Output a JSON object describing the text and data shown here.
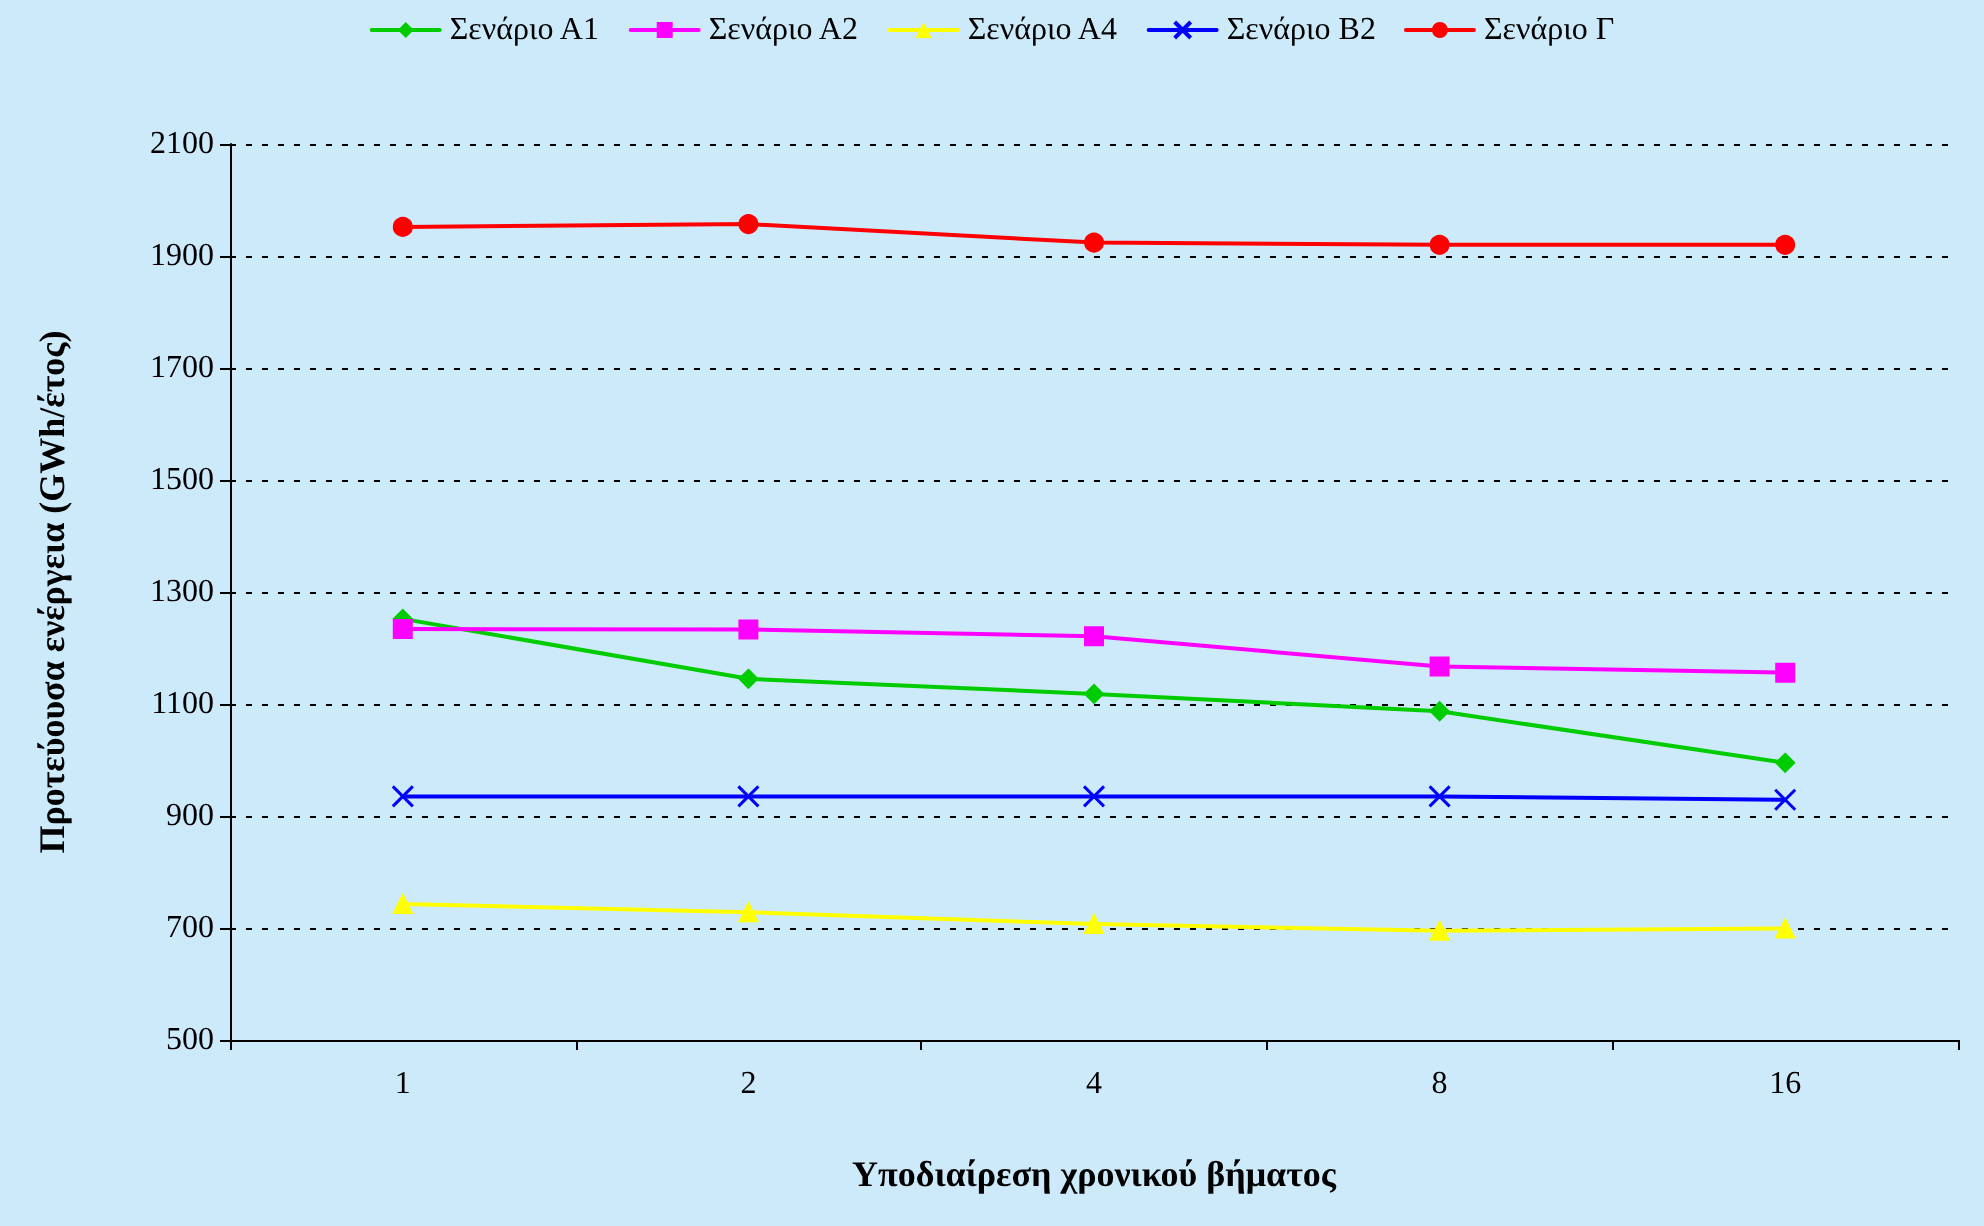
{
  "chart_data": {
    "type": "line",
    "xlabel": "Υποδιαίρεση χρονικού βήματος",
    "ylabel": "Προτεύουσα ενέργεια (GWh/έτος)",
    "categories": [
      "1",
      "2",
      "4",
      "8",
      "16"
    ],
    "series": [
      {
        "name": "Σενάριο Α1",
        "color": "#00cc00",
        "marker": "diamond",
        "values": [
          1252,
          1145,
          1118,
          1087,
          995
        ]
      },
      {
        "name": "Σενάριο Α2",
        "color": "#ff00ff",
        "marker": "square",
        "values": [
          1234,
          1233,
          1221,
          1167,
          1156
        ]
      },
      {
        "name": "Σενάριο Α4",
        "color": "#ffff00",
        "marker": "triangle",
        "values": [
          743,
          728,
          707,
          695,
          699
        ]
      },
      {
        "name": "Σενάριο Β2",
        "color": "#0000ff",
        "marker": "cross",
        "values": [
          935,
          935,
          935,
          935,
          929
        ]
      },
      {
        "name": "Σενάριο Γ",
        "color": "#ff0000",
        "marker": "circle",
        "values": [
          1952,
          1957,
          1924,
          1920,
          1920
        ]
      }
    ],
    "ylim": [
      500,
      2100
    ],
    "yticks": [
      500,
      700,
      900,
      1100,
      1300,
      1500,
      1700,
      1900,
      2100
    ],
    "grid": "y",
    "legend": "top",
    "line_style": "solid"
  }
}
